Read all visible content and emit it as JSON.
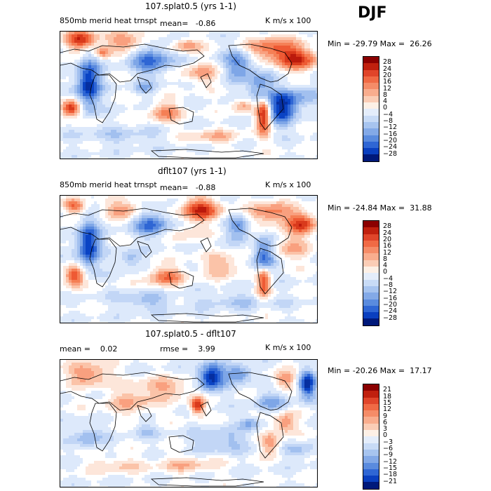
{
  "season": "DJF",
  "panels": [
    {
      "title": "107.splat0.5 (yrs 1-1)",
      "field_label": "850mb merid heat trnspt",
      "mean_text": "mean=   -0.86",
      "units": "K m/s x 100",
      "stats": "Min = -29.79 Max =  26.26",
      "levels": [
        "28",
        "24",
        "20",
        "16",
        "12",
        "8",
        "4",
        "0",
        "-4",
        "-8",
        "-12",
        "-16",
        "-20",
        "-24",
        "-28"
      ]
    },
    {
      "title": "dflt107 (yrs 1-1)",
      "field_label": "850mb merid heat trnspt",
      "mean_text": "mean=   -0.88",
      "units": "K m/s x 100",
      "stats": "Min = -24.84 Max =  31.88",
      "levels": [
        "28",
        "24",
        "20",
        "16",
        "12",
        "8",
        "4",
        "0",
        "-4",
        "-8",
        "-12",
        "-16",
        "-20",
        "-24",
        "-28"
      ]
    },
    {
      "title": "107.splat0.5 - dflt107",
      "mean_text": "mean =    0.02",
      "rmse_text": "rmse =    3.99",
      "units": "K m/s x 100",
      "stats": "Min = -20.26 Max =  17.17",
      "levels": [
        "21",
        "18",
        "15",
        "12",
        "9",
        "6",
        "3",
        "0",
        "-3",
        "-6",
        "-9",
        "-12",
        "-15",
        "-18",
        "-21"
      ]
    }
  ],
  "colors": [
    "#8b0000",
    "#bb1a0c",
    "#d93a1c",
    "#ee5a34",
    "#f57f55",
    "#f9a07f",
    "#fbc3a8",
    "#fde6da",
    "#ffffff",
    "#dde9fb",
    "#c2d6f6",
    "#a2c0ef",
    "#7ea6e7",
    "#5989de",
    "#2f66d4",
    "#0a43c4",
    "#062fa0",
    "#00197a"
  ],
  "chart_data": [
    {
      "type": "heatmap",
      "title": "107.splat0.5 (yrs 1-1)",
      "variable": "850mb merid heat trnspt",
      "units": "K m/s x 100",
      "mean": -0.86,
      "min": -29.79,
      "max": 26.26,
      "contour_levels": [
        -28,
        -24,
        -20,
        -16,
        -12,
        -8,
        -4,
        0,
        4,
        8,
        12,
        16,
        20,
        24,
        28
      ]
    },
    {
      "type": "heatmap",
      "title": "dflt107 (yrs 1-1)",
      "variable": "850mb merid heat trnspt",
      "units": "K m/s x 100",
      "mean": -0.88,
      "min": -24.84,
      "max": 31.88,
      "contour_levels": [
        -28,
        -24,
        -20,
        -16,
        -12,
        -8,
        -4,
        0,
        4,
        8,
        12,
        16,
        20,
        24,
        28
      ]
    },
    {
      "type": "heatmap",
      "title": "107.splat0.5 - dflt107",
      "units": "K m/s x 100",
      "mean": 0.02,
      "rmse": 3.99,
      "min": -20.26,
      "max": 17.17,
      "contour_levels": [
        -21,
        -18,
        -15,
        -12,
        -9,
        -6,
        -3,
        0,
        3,
        6,
        9,
        12,
        15,
        18,
        21
      ]
    }
  ]
}
